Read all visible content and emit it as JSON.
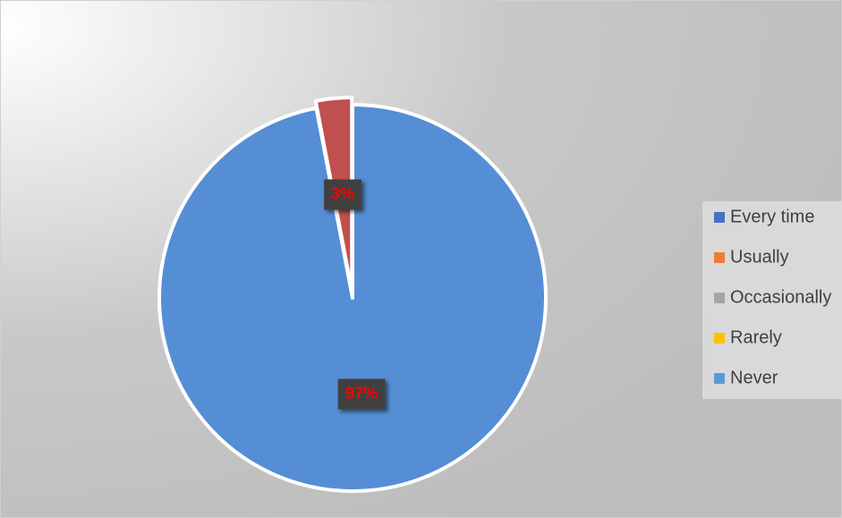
{
  "chart_data": {
    "type": "pie",
    "categories": [
      "Every time",
      "Usually",
      "Occasionally",
      "Rarely",
      "Never"
    ],
    "values": [
      97,
      0,
      0,
      0,
      3
    ],
    "value_labels": [
      "97%",
      null,
      null,
      null,
      "3%"
    ],
    "colors": [
      "#4472c4",
      "#ed7d31",
      "#a5a5a5",
      "#ffc000",
      "#5b9bd5"
    ],
    "slice_colors": [
      "#558ed5",
      "#ed7d31",
      "#a5a5a5",
      "#ffc000",
      "#c0504d"
    ],
    "legend": "right"
  }
}
